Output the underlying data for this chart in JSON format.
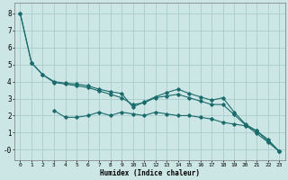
{
  "xlabel": "Humidex (Indice chaleur)",
  "background_color": "#cce5e5",
  "grid_color": "#aacccc",
  "line_color": "#1a6b6b",
  "xlim": [
    -0.5,
    23.5
  ],
  "ylim": [
    -0.6,
    8.6
  ],
  "yticks": [
    0,
    1,
    2,
    3,
    4,
    5,
    6,
    7,
    8
  ],
  "ytick_labels": [
    "-0",
    "1",
    "2",
    "3",
    "4",
    "5",
    "6",
    "7",
    "8"
  ],
  "xticks": [
    0,
    1,
    2,
    3,
    4,
    5,
    6,
    7,
    8,
    9,
    10,
    11,
    12,
    13,
    14,
    15,
    16,
    17,
    18,
    19,
    20,
    21,
    22,
    23
  ],
  "line1_x": [
    0,
    1,
    2,
    3,
    4,
    5,
    6,
    7,
    8,
    9,
    10,
    11,
    12,
    13,
    14,
    15,
    16,
    17,
    18,
    19,
    20,
    21,
    22,
    23
  ],
  "line1_y": [
    8.0,
    5.1,
    4.4,
    4.0,
    3.9,
    3.85,
    3.75,
    3.55,
    3.4,
    3.3,
    2.5,
    2.8,
    3.1,
    3.35,
    3.55,
    3.3,
    3.1,
    2.9,
    3.05,
    2.2,
    1.5,
    1.1,
    0.6,
    -0.1
  ],
  "line2_x": [
    0,
    1,
    2,
    3,
    4,
    5,
    6,
    7,
    8,
    9,
    10,
    11,
    12,
    13,
    14,
    15,
    16,
    17,
    18,
    19,
    20,
    21,
    22,
    23
  ],
  "line2_y": [
    8.0,
    5.1,
    4.4,
    3.95,
    3.85,
    3.75,
    3.65,
    3.45,
    3.25,
    3.05,
    2.65,
    2.75,
    3.05,
    3.15,
    3.25,
    3.05,
    2.85,
    2.65,
    2.65,
    2.05,
    1.45,
    0.95,
    0.45,
    -0.1
  ],
  "line3_x": [
    3,
    4,
    5,
    6,
    7,
    8,
    9,
    10,
    11,
    12,
    13,
    14,
    15,
    16,
    17,
    18,
    19,
    20,
    21,
    22,
    23
  ],
  "line3_y": [
    2.3,
    1.9,
    1.9,
    2.0,
    2.2,
    2.0,
    2.2,
    2.1,
    2.0,
    2.2,
    2.1,
    2.0,
    2.0,
    1.9,
    1.8,
    1.6,
    1.5,
    1.4,
    1.1,
    0.5,
    -0.1
  ]
}
